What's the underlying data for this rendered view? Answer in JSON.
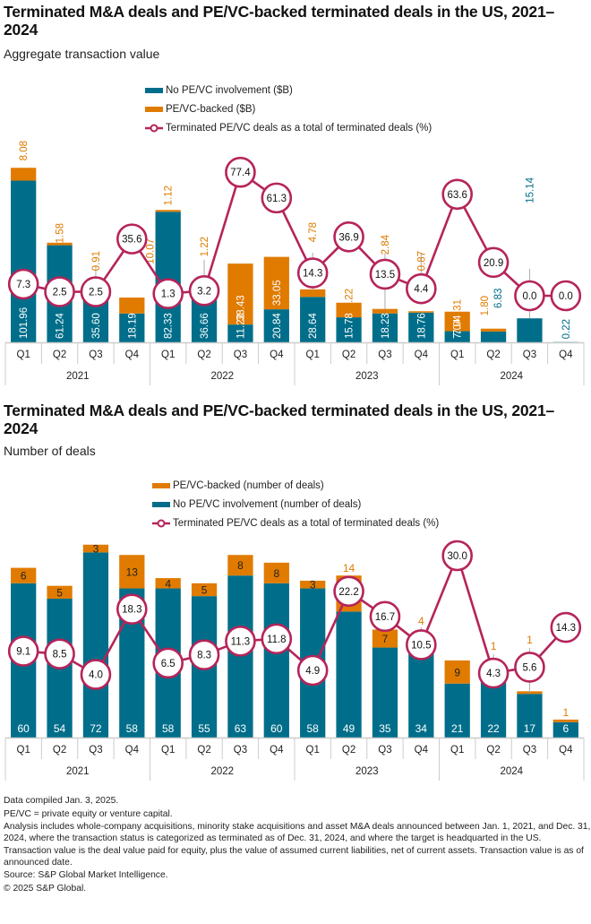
{
  "colors": {
    "no_pe": "#006e8a",
    "pe": "#e07b00",
    "line": "#b5245a",
    "axis": "#cccccc"
  },
  "chart_data": [
    {
      "type": "bar",
      "stacked": true,
      "title": "Terminated M&A deals and PE/VC-backed terminated deals in the US, 2021–2024",
      "subtitle": "Aggregate transaction value",
      "legend": {
        "no_pe": "No PE/VC involvement ($B)",
        "pe": "PE/VC-backed ($B)",
        "line": "Terminated PE/VC deals as a total of terminated deals (%)"
      },
      "legend_position": "top-center",
      "years": [
        "2021",
        "2022",
        "2023",
        "2024"
      ],
      "categories": [
        "Q1",
        "Q2",
        "Q3",
        "Q4",
        "Q1",
        "Q2",
        "Q3",
        "Q4",
        "Q1",
        "Q2",
        "Q3",
        "Q4",
        "Q1",
        "Q2",
        "Q3",
        "Q4"
      ],
      "series": [
        {
          "name": "No PE/VC involvement ($B)",
          "values": [
            101.96,
            61.24,
            35.6,
            18.19,
            82.33,
            36.66,
            11.22,
            20.84,
            28.64,
            15.78,
            18.23,
            18.76,
            7.04,
            6.83,
            15.14,
            0.22
          ]
        },
        {
          "name": "PE/VC-backed ($B)",
          "values": [
            8.08,
            1.58,
            0.91,
            10.07,
            1.12,
            1.22,
            38.43,
            33.05,
            4.78,
            9.22,
            2.84,
            0.87,
            12.31,
            1.8,
            0.0,
            0.0
          ]
        },
        {
          "name": "Terminated PE/VC deals as a total of terminated deals (%)",
          "type": "line",
          "values": [
            7.3,
            2.5,
            2.5,
            35.6,
            1.3,
            3.2,
            77.4,
            61.3,
            14.3,
            36.9,
            13.5,
            4.4,
            63.6,
            20.9,
            0.0,
            0.0
          ]
        }
      ],
      "no_pe_labels": [
        "101.96",
        "61.24",
        "35.60",
        "18.19",
        "82.33",
        "36.66",
        "11.22",
        "20.84",
        "28.64",
        "15.78",
        "18.23",
        "18.76",
        "7.04",
        "6.83",
        "15.14",
        "0.22"
      ],
      "pe_labels": [
        "8.08",
        "1.58",
        "0.91",
        "10.07",
        "1.12",
        "1.22",
        "38.43",
        "33.05",
        "4.78",
        "9.22",
        "2.84",
        "0.87",
        "12.31",
        "1.80",
        "",
        ""
      ],
      "line_labels": [
        "7.3",
        "2.5",
        "2.5",
        "35.6",
        "1.3",
        "3.2",
        "77.4",
        "61.3",
        "14.3",
        "36.9",
        "13.5",
        "4.4",
        "63.6",
        "20.9",
        "0.0",
        "0.0"
      ],
      "xlabel": "",
      "ylabel": "",
      "grid": false
    },
    {
      "type": "bar",
      "stacked": true,
      "title": "Terminated M&A deals and PE/VC-backed terminated deals in the US, 2021–2024",
      "subtitle": "Number of deals",
      "legend": {
        "pe": "PE/VC-backed (number of deals)",
        "no_pe": "No PE/VC involvement (number of deals)",
        "line": "Terminated PE/VC deals as a total of terminated deals (%)"
      },
      "legend_position": "top-center",
      "years": [
        "2021",
        "2022",
        "2023",
        "2024"
      ],
      "categories": [
        "Q1",
        "Q2",
        "Q3",
        "Q4",
        "Q1",
        "Q2",
        "Q3",
        "Q4",
        "Q1",
        "Q2",
        "Q3",
        "Q4",
        "Q1",
        "Q2",
        "Q3",
        "Q4"
      ],
      "series": [
        {
          "name": "No PE/VC involvement (number of deals)",
          "values": [
            60,
            54,
            72,
            58,
            58,
            55,
            63,
            60,
            58,
            49,
            35,
            34,
            21,
            22,
            17,
            6
          ]
        },
        {
          "name": "PE/VC-backed (number of deals)",
          "values": [
            6,
            5,
            3,
            13,
            4,
            5,
            8,
            8,
            3,
            14,
            7,
            4,
            9,
            1,
            1,
            1
          ]
        },
        {
          "name": "Terminated PE/VC deals as a total of terminated deals (%)",
          "type": "line",
          "values": [
            9.1,
            8.5,
            4.0,
            18.3,
            6.5,
            8.3,
            11.3,
            11.8,
            4.9,
            22.2,
            16.7,
            10.5,
            30.0,
            4.3,
            5.6,
            14.3
          ]
        }
      ],
      "no_pe_labels": [
        "60",
        "54",
        "72",
        "58",
        "58",
        "55",
        "63",
        "60",
        "58",
        "49",
        "35",
        "34",
        "21",
        "22",
        "17",
        "6"
      ],
      "pe_labels": [
        "6",
        "5",
        "3",
        "13",
        "4",
        "5",
        "8",
        "8",
        "3",
        "14",
        "7",
        "4",
        "9",
        "1",
        "1",
        "1"
      ],
      "line_labels": [
        "9.1",
        "8.5",
        "4.0",
        "18.3",
        "6.5",
        "8.3",
        "11.3",
        "11.8",
        "4.9",
        "22.2",
        "16.7",
        "10.5",
        "30.0",
        "4.3",
        "5.6",
        "14.3"
      ],
      "xlabel": "",
      "ylabel": "",
      "grid": false
    }
  ],
  "notes": [
    "Data compiled Jan. 3, 2025.",
    "PE/VC = private equity or venture capital.",
    "Analysis includes whole-company acquisitions, minority stake acquisitions and asset M&A deals announced between Jan. 1, 2021, and Dec. 31, 2024, where the transaction status is categorized as terminated as of Dec. 31, 2024, and where the target is headquarted in the US.",
    "Transaction value is the deal value paid for equity, plus the value of assumed current liabilities, net of current assets. Transaction value is as of announced date.",
    "Source: S&P Global Market Intelligence.",
    "© 2025 S&P Global."
  ]
}
